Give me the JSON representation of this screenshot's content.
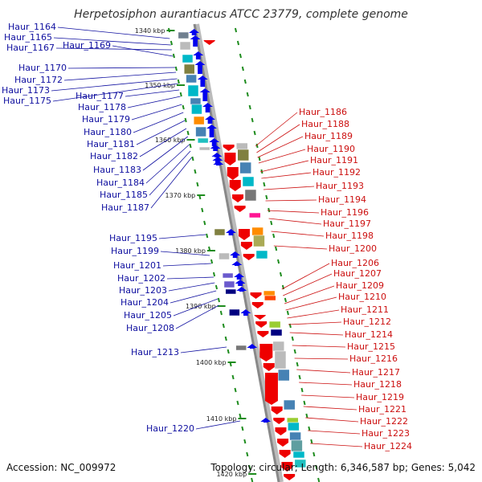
{
  "title": "Herpetosiphon aurantiacus ATCC 23779, complete genome",
  "footer": {
    "accession": "Accession: NC_009972",
    "stats": "Topology: circular; Length: 6,346,587 bp; Genes: 5,042"
  },
  "colors": {
    "backbone": "#999999",
    "scale": "#1e8c1e",
    "forward_gene": "#0000ee",
    "reverse_gene": "#ee0000",
    "forward_label": "#1010a0",
    "reverse_label": "#cc1010"
  },
  "ticks": [
    "1340 kbp",
    "1350 kbp",
    "1360 kbp",
    "1370 kbp",
    "1380 kbp",
    "1390 kbp",
    "1400 kbp",
    "1410 kbp",
    "1420 kbp"
  ],
  "forward_labels": [
    "Haur_1164",
    "Haur_1165",
    "Haur_1167",
    "Haur_1169",
    "Haur_1170",
    "Haur_1172",
    "Haur_1173",
    "Haur_1175",
    "Haur_1177",
    "Haur_1178",
    "Haur_1179",
    "Haur_1180",
    "Haur_1181",
    "Haur_1182",
    "Haur_1183",
    "Haur_1184",
    "Haur_1185",
    "Haur_1187",
    "Haur_1195",
    "Haur_1199",
    "Haur_1201",
    "Haur_1202",
    "Haur_1203",
    "Haur_1204",
    "Haur_1205",
    "Haur_1208",
    "Haur_1213",
    "Haur_1220"
  ],
  "reverse_labels": [
    "Haur_1186",
    "Haur_1188",
    "Haur_1189",
    "Haur_1190",
    "Haur_1191",
    "Haur_1192",
    "Haur_1193",
    "Haur_1194",
    "Haur_1196",
    "Haur_1197",
    "Haur_1198",
    "Haur_1200",
    "Haur_1206",
    "Haur_1207",
    "Haur_1209",
    "Haur_1210",
    "Haur_1211",
    "Haur_1212",
    "Haur_1214",
    "Haur_1215",
    "Haur_1216",
    "Haur_1217",
    "Haur_1218",
    "Haur_1219",
    "Haur_1221",
    "Haur_1222",
    "Haur_1223",
    "Haur_1224"
  ]
}
